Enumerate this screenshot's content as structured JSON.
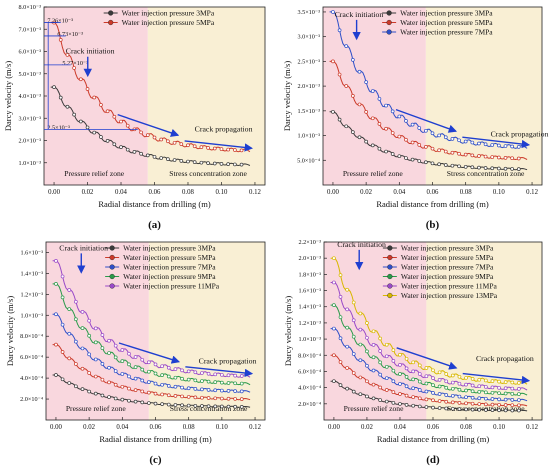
{
  "figure": {
    "panels": [
      "(a)",
      "(b)",
      "(c)",
      "(d)"
    ]
  },
  "chart_data": [
    {
      "id": "a",
      "type": "line",
      "panel_label": "(a)",
      "xlabel": "Radial distance from drilling (m)",
      "ylabel": "Darcy velocity (m/s)",
      "xlim": [
        -0.006,
        0.126
      ],
      "ylim": [
        0,
        0.008
      ],
      "x_ticks": [
        0.0,
        0.02,
        0.04,
        0.06,
        0.08,
        0.1,
        0.12
      ],
      "x_tick_labels": [
        "0.00",
        "0.02",
        "0.04",
        "0.06",
        "0.08",
        "0.10",
        "0.12"
      ],
      "y_ticks": [
        0.001,
        0.002,
        0.003,
        0.004,
        0.005,
        0.006,
        0.007,
        0.008
      ],
      "y_tick_labels": [
        "1.0×10⁻³",
        "2.0×10⁻³",
        "3.0×10⁻³",
        "4.0×10⁻³",
        "5.0×10⁻³",
        "6.0×10⁻³",
        "7.0×10⁻³",
        "8.0×10⁻³"
      ],
      "zones": [
        {
          "label": "Pressure relief zone",
          "x": [
            -0.006,
            0.056
          ],
          "color": "#f9d7de"
        },
        {
          "label": "Stress concentration zone",
          "x": [
            0.056,
            0.126
          ],
          "color": "#f9efd4"
        }
      ],
      "legend": "top-right",
      "series": [
        {
          "name": "Water injection pressure 3MPa",
          "color": "#3a3a3a",
          "peak": 0.0044,
          "tail": 0.00085
        },
        {
          "name": "Water injection pressure 5MPa",
          "color": "#cc3a2a",
          "peak": 0.0073,
          "tail": 0.00145
        }
      ],
      "annotations": [
        {
          "text": "7.26×10⁻³",
          "x": -0.004,
          "y": 0.0073
        },
        {
          "text": "6.73×10⁻³",
          "x": 0.002,
          "y": 0.0067
        },
        {
          "text": "5.27×10⁻³",
          "x": 0.005,
          "y": 0.0054
        },
        {
          "text": "2.5×10⁻³",
          "x": -0.004,
          "y": 0.0025
        },
        {
          "text": "Crack initiation",
          "x": 0.007,
          "y": 0.0059
        },
        {
          "text": "Crack propagation",
          "x": 0.084,
          "y": 0.0024
        }
      ]
    },
    {
      "id": "b",
      "type": "line",
      "panel_label": "(b)",
      "xlabel": "Radial distance from drilling (m)",
      "ylabel": "Darcy velocity (m/s)",
      "xlim": [
        -0.006,
        0.126
      ],
      "ylim": [
        0,
        0.0036
      ],
      "x_ticks": [
        0.0,
        0.02,
        0.04,
        0.06,
        0.08,
        0.1,
        0.12
      ],
      "x_tick_labels": [
        "0.00",
        "0.02",
        "0.04",
        "0.06",
        "0.08",
        "0.10",
        "0.12"
      ],
      "y_ticks": [
        0.0005,
        0.001,
        0.0015,
        0.002,
        0.0025,
        0.003,
        0.0035
      ],
      "y_tick_labels": [
        "5.0×10⁻⁴",
        "1.0×10⁻³",
        "1.5×10⁻³",
        "2.0×10⁻³",
        "2.5×10⁻³",
        "3.0×10⁻³",
        "3.5×10⁻³"
      ],
      "zones": [
        {
          "label": "Pressure relief zone",
          "x": [
            -0.006,
            0.056
          ],
          "color": "#f9d7de"
        },
        {
          "label": "Stress concentration zone",
          "x": [
            0.056,
            0.126
          ],
          "color": "#f9efd4"
        }
      ],
      "legend": "top-right",
      "series": [
        {
          "name": "Water injection pressure 3MPa",
          "color": "#3a3a3a",
          "peak": 0.00148,
          "tail": 0.0003
        },
        {
          "name": "Water injection pressure 5MPa",
          "color": "#cc3a2a",
          "peak": 0.0025,
          "tail": 0.0005
        },
        {
          "name": "Water injection pressure 7MPa",
          "color": "#2e4fc8",
          "peak": 0.0035,
          "tail": 0.00072
        }
      ],
      "annotations": [
        {
          "text": "Crack initiation",
          "x": 0.001,
          "y": 0.0034
        },
        {
          "text": "Crack propagation",
          "x": 0.095,
          "y": 0.00098
        }
      ]
    },
    {
      "id": "c",
      "type": "line",
      "panel_label": "(c)",
      "xlabel": "Radial distance from drilling (m)",
      "ylabel": "Darcy velocity (m/s)",
      "xlim": [
        -0.006,
        0.126
      ],
      "ylim": [
        0,
        0.0017
      ],
      "x_ticks": [
        0.0,
        0.02,
        0.04,
        0.06,
        0.08,
        0.1,
        0.12
      ],
      "x_tick_labels": [
        "0.00",
        "0.02",
        "0.04",
        "0.06",
        "0.08",
        "0.10",
        "0.12"
      ],
      "y_ticks": [
        0.0002,
        0.0004,
        0.0006,
        0.0008,
        0.001,
        0.0012,
        0.0014,
        0.0016
      ],
      "y_tick_labels": [
        "2.0×10⁻⁴",
        "4.0×10⁻⁴",
        "6.0×10⁻⁴",
        "8.0×10⁻⁴",
        "1.0×10⁻³",
        "1.2×10⁻³",
        "1.4×10⁻³",
        "1.6×10⁻³"
      ],
      "zones": [
        {
          "label": "Pressure relief zone",
          "x": [
            -0.006,
            0.056
          ],
          "color": "#f9d7de"
        },
        {
          "label": "Stress concentration zone",
          "x": [
            0.056,
            0.126
          ],
          "color": "#f9efd4"
        }
      ],
      "legend": "top-right",
      "series": [
        {
          "name": "Water injection pressure 3MPa",
          "color": "#3a3a3a",
          "peak": 0.00043,
          "tail": 0.00012
        },
        {
          "name": "Water injection pressure 5MPa",
          "color": "#cc3a2a",
          "peak": 0.00072,
          "tail": 0.00019
        },
        {
          "name": "Water injection pressure 7MPa",
          "color": "#2e4fc8",
          "peak": 0.00101,
          "tail": 0.00026
        },
        {
          "name": "Water injection pressure 9MPa",
          "color": "#2a9a4a",
          "peak": 0.0013,
          "tail": 0.00033
        },
        {
          "name": "Water injection pressure 11MPa",
          "color": "#9a4ac8",
          "peak": 0.00152,
          "tail": 0.0004
        }
      ],
      "annotations": [
        {
          "text": "Crack initiation",
          "x": 0.002,
          "y": 0.00162
        },
        {
          "text": "Crack propagation",
          "x": 0.086,
          "y": 0.00054
        }
      ]
    },
    {
      "id": "d",
      "type": "line",
      "panel_label": "(d)",
      "xlabel": "Radial distance from drilling (m)",
      "ylabel": "Darcy velocity (m/s)",
      "xlim": [
        -0.006,
        0.126
      ],
      "ylim": [
        0,
        0.0022
      ],
      "x_ticks": [
        0.0,
        0.02,
        0.04,
        0.06,
        0.08,
        0.1,
        0.12
      ],
      "x_tick_labels": [
        "0.00",
        "0.02",
        "0.04",
        "0.06",
        "0.08",
        "0.10",
        "0.12"
      ],
      "y_ticks": [
        0.0002,
        0.0004,
        0.0006,
        0.0008,
        0.001,
        0.0012,
        0.0014,
        0.0016,
        0.0018,
        0.002,
        0.0022
      ],
      "y_tick_labels": [
        "2.0×10⁻⁴",
        "4.0×10⁻⁴",
        "6.0×10⁻⁴",
        "8.0×10⁻⁴",
        "1.0×10⁻³",
        "1.2×10⁻³",
        "1.4×10⁻³",
        "1.6×10⁻³",
        "1.8×10⁻³",
        "2.0×10⁻³",
        "2.2×10⁻³"
      ],
      "zones": [
        {
          "label": "Pressure relief zone",
          "x": [
            -0.006,
            0.056
          ],
          "color": "#f9d7de"
        },
        {
          "label": "Stress concentration zone",
          "x": [
            0.056,
            0.126
          ],
          "color": "#f9efd4"
        }
      ],
      "legend": "top-right",
      "series": [
        {
          "name": "Water injection pressure 3MPa",
          "color": "#3a3a3a",
          "peak": 0.00048,
          "tail": 0.00011
        },
        {
          "name": "Water injection pressure 5MPa",
          "color": "#cc3a2a",
          "peak": 0.0008,
          "tail": 0.00017
        },
        {
          "name": "Water injection pressure 7MPa",
          "color": "#2e4fc8",
          "peak": 0.00113,
          "tail": 0.00023
        },
        {
          "name": "Water injection pressure 9MPa",
          "color": "#2a9a4a",
          "peak": 0.00142,
          "tail": 0.0003
        },
        {
          "name": "Water injection pressure 11MPa",
          "color": "#9a4ac8",
          "peak": 0.0017,
          "tail": 0.00036
        },
        {
          "name": "Water injection pressure 13MPa",
          "color": "#d8b800",
          "peak": 0.002,
          "tail": 0.00043
        }
      ],
      "annotations": [
        {
          "text": "Crack initiation",
          "x": 0.002,
          "y": 0.00214
        },
        {
          "text": "Crack propagation",
          "x": 0.086,
          "y": 0.00073
        }
      ]
    }
  ]
}
